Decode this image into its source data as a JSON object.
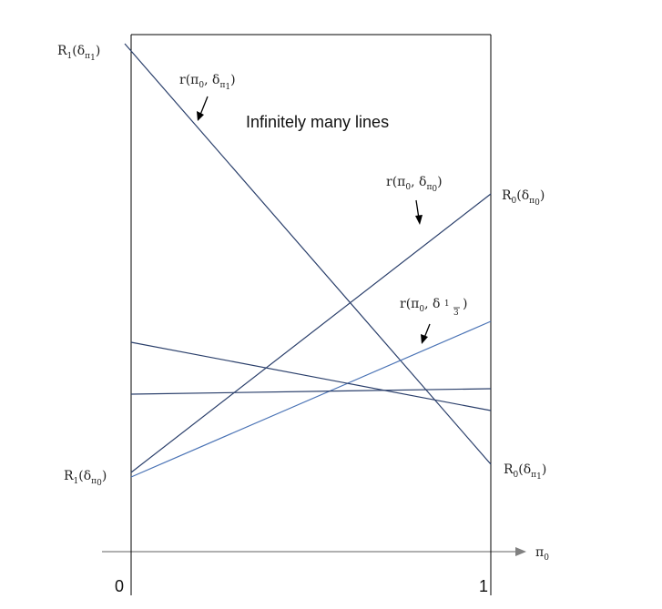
{
  "annotation_text": "Infinitely many lines",
  "axis_label": "π0",
  "ticks": [
    "0",
    "1"
  ],
  "labels": {
    "r_pi0_dpi1": "r(π0, δπ1)",
    "r_pi0_dpi0": "r(π0, δπ0)",
    "r_pi0_d13": "r(π0, δ1/3)",
    "R1_dpi1": "R1(δπ1)",
    "R1_dpi0": "R1(δπ0)",
    "R0_dpi0": "R0(δπ0)",
    "R0_dpi1": "R0(δπ1)"
  },
  "colors": {
    "frame": "#000000",
    "line_dark": "#2a3f6b",
    "line_light": "#4a73b5",
    "axis": "#808080"
  }
}
